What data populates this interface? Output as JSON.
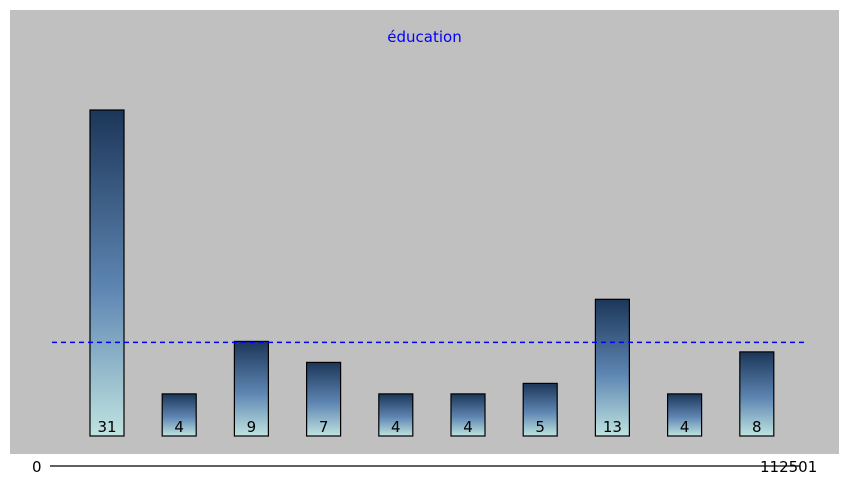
{
  "chart_data": {
    "type": "bar",
    "title": "éducation",
    "values": [
      31,
      4,
      9,
      7,
      4,
      4,
      5,
      13,
      4,
      8
    ],
    "mean": 8.9,
    "x_range_labels": {
      "min": "0",
      "max": "112501"
    },
    "ylim": [
      0,
      32
    ],
    "grid": false,
    "colors": {
      "background": "#c0c0c0",
      "bar_top": "#1c3659",
      "bar_mid": "#5e86b2",
      "bar_bottom": "#bfe3e0",
      "bar_border": "#000000",
      "mean_line": "#0000ff",
      "title": "#0000ff"
    }
  }
}
